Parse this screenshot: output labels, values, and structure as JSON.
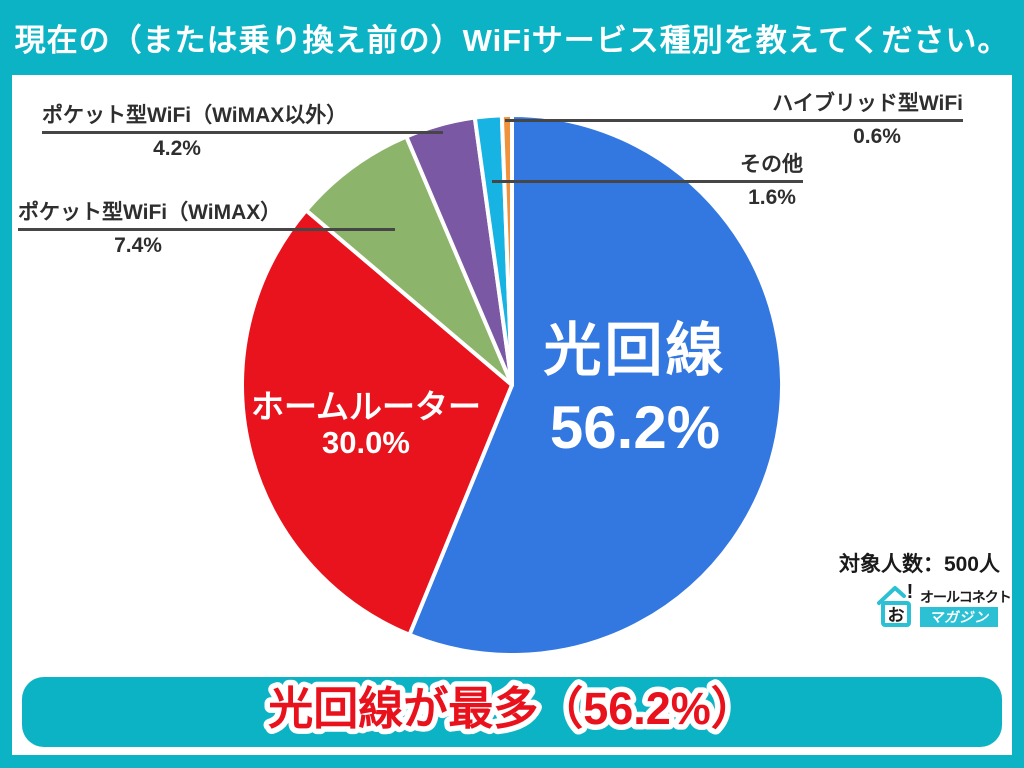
{
  "header": {
    "title": "現在の（または乗り換え前の）WiFiサービス種別を教えてください。"
  },
  "chart_data": {
    "type": "pie",
    "title": "現在の（または乗り換え前の）WiFiサービス種別を教えてください。",
    "start_angle_deg": 0,
    "direction": "clockwise",
    "sample_note": "対象人数：500人",
    "slices": [
      {
        "label": "光回線",
        "value": 56.2,
        "color": "#3377e0"
      },
      {
        "label": "ホームルーター",
        "value": 30.0,
        "color": "#e8131d"
      },
      {
        "label": "ポケット型WiFi（WiMAX）",
        "value": 7.4,
        "color": "#8cb46a"
      },
      {
        "label": "ポケット型WiFi（WiMAX以外）",
        "value": 4.2,
        "color": "#7a58a4"
      },
      {
        "label": "その他",
        "value": 1.6,
        "color": "#16b3e3"
      },
      {
        "label": "ハイブリッド型WiFi",
        "value": 0.6,
        "color": "#f0913b"
      }
    ]
  },
  "labels": {
    "fiber": {
      "name": "光回線",
      "pct": "56.2%"
    },
    "home_router": {
      "name": "ホームルーター",
      "pct": "30.0%"
    },
    "pocket_wimax": {
      "name": "ポケット型WiFi（WiMAX）",
      "pct": "7.4%"
    },
    "pocket_other": {
      "name": "ポケット型WiFi（WiMAX以外）",
      "pct": "4.2%"
    },
    "other": {
      "name": "その他",
      "pct": "1.6%"
    },
    "hybrid": {
      "name": "ハイブリッド型WiFi",
      "pct": "0.6%"
    }
  },
  "meta": {
    "sample_size": "対象人数：500人"
  },
  "logo": {
    "brand": "オールコネクト",
    "sub": "マガジン",
    "icon_glyph": "お",
    "mark": "!"
  },
  "footer": {
    "banner_text": "光回線が最多（56.2%）"
  },
  "colors": {
    "frame": "#0cb3c5",
    "banner_text": "#e8111c",
    "leader_line": "#464646"
  }
}
